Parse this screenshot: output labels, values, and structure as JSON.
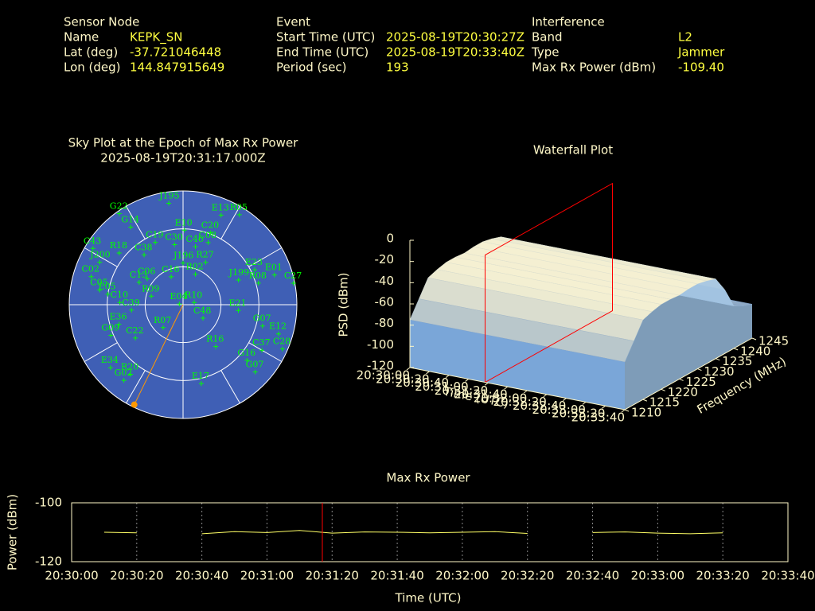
{
  "header": {
    "sections": [
      {
        "title": "Sensor Node",
        "rows": [
          [
            "Name",
            "KEPK_SN"
          ],
          [
            "Lat (deg)",
            "-37.721046448"
          ],
          [
            "Lon (deg)",
            "144.847915649"
          ]
        ]
      },
      {
        "title": "Event",
        "rows": [
          [
            "Start Time (UTC)",
            "2025-08-19T20:30:27Z"
          ],
          [
            "End Time (UTC)",
            "2025-08-19T20:33:40Z"
          ],
          [
            "Period (sec)",
            "193"
          ]
        ]
      },
      {
        "title": "Interference",
        "rows": [
          [
            "Band",
            "L2"
          ],
          [
            "Type",
            "Jammer"
          ],
          [
            "Max Rx Power (dBm)",
            "-109.40"
          ]
        ]
      }
    ]
  },
  "chart_data": [
    {
      "type": "polar",
      "title": "Sky Plot at the Epoch of Max Rx Power",
      "subtitle": "2025-08-19T20:31:17.000Z",
      "color": "#00ff00",
      "background": "#3f5fb5",
      "rticks": [
        0,
        30,
        60
      ],
      "azticks": [
        0,
        30,
        60,
        90,
        120,
        150,
        180,
        210,
        240,
        270,
        300,
        330
      ],
      "satellites": [
        {
          "name": "J195",
          "az": 352,
          "el": 9
        },
        {
          "name": "G22",
          "az": 325,
          "el": 2
        },
        {
          "name": "G14",
          "az": 326,
          "el": 16
        },
        {
          "name": "E13",
          "az": 23,
          "el": 13
        },
        {
          "name": "R05",
          "az": 32,
          "el": 6
        },
        {
          "name": "E10",
          "az": 1,
          "el": 31
        },
        {
          "name": "C20",
          "az": 21,
          "el": 29
        },
        {
          "name": "C08",
          "az": 22,
          "el": 37
        },
        {
          "name": "C43",
          "az": 302,
          "el": 6
        },
        {
          "name": "R18",
          "az": 309,
          "el": 25
        },
        {
          "name": "C19",
          "az": 336,
          "el": 36
        },
        {
          "name": "C30",
          "az": 352,
          "el": 42
        },
        {
          "name": "C46",
          "az": 12,
          "el": 43
        },
        {
          "name": "C38",
          "az": 322,
          "el": 40
        },
        {
          "name": "J196",
          "az": 0,
          "el": 57
        },
        {
          "name": "R27",
          "az": 28,
          "el": 52
        },
        {
          "name": "E23",
          "az": 64,
          "el": 27
        },
        {
          "name": "E01",
          "az": 72,
          "el": 14
        },
        {
          "name": "J200",
          "az": 297,
          "el": 16
        },
        {
          "name": "C02",
          "az": 287,
          "el": 14
        },
        {
          "name": "C27",
          "az": 79,
          "el": 1
        },
        {
          "name": "C06",
          "az": 306,
          "el": 55
        },
        {
          "name": "C16",
          "az": 337,
          "el": 66
        },
        {
          "name": "R02",
          "az": 22,
          "el": 64
        },
        {
          "name": "J199",
          "az": 66,
          "el": 42
        },
        {
          "name": "R08",
          "az": 74,
          "el": 28
        },
        {
          "name": "C05",
          "az": 280,
          "el": 23
        },
        {
          "name": "E05",
          "az": 278,
          "el": 30
        },
        {
          "name": "C13",
          "az": 297,
          "el": 51
        },
        {
          "name": "C10",
          "az": 272,
          "el": 40
        },
        {
          "name": "C39",
          "az": 264,
          "el": 49
        },
        {
          "name": "R09",
          "az": 285,
          "el": 64
        },
        {
          "name": "E04",
          "az": 281,
          "el": 87
        },
        {
          "name": "R10",
          "az": 79,
          "el": 81
        },
        {
          "name": "E21",
          "az": 96,
          "el": 46
        },
        {
          "name": "C48",
          "az": 124,
          "el": 71
        },
        {
          "name": "E36",
          "az": 253,
          "el": 37
        },
        {
          "name": "R07",
          "az": 221,
          "el": 66
        },
        {
          "name": "G07",
          "az": 105,
          "el": 25
        },
        {
          "name": "E12",
          "az": 107,
          "el": 11
        },
        {
          "name": "G09",
          "az": 247,
          "el": 28
        },
        {
          "name": "C22",
          "az": 235,
          "el": 44
        },
        {
          "name": "R16",
          "az": 142,
          "el": 48
        },
        {
          "name": "C28",
          "az": 114,
          "el": 4
        },
        {
          "name": "C37",
          "az": 120,
          "el": 18
        },
        {
          "name": "G16",
          "az": 131,
          "el": 23
        },
        {
          "name": "G07",
          "az": 133,
          "el": 12
        },
        {
          "name": "E34",
          "az": 229,
          "el": 14
        },
        {
          "name": "R20",
          "az": 217,
          "el": 21
        },
        {
          "name": "G02",
          "az": 218,
          "el": 14
        },
        {
          "name": "E17",
          "az": 167,
          "el": 26
        }
      ],
      "max_power_direction": {
        "az": 206,
        "el": 2,
        "color": "#ff9900"
      }
    },
    {
      "type": "surface3d",
      "title": "Waterfall Plot",
      "xlabel": "Time (UTC)",
      "ylabel": "Frequency (MHz)",
      "zlabel": "PSD (dBm)",
      "xlim": [
        73800,
        74020
      ],
      "xticks": [
        {
          "value": 73800,
          "label": "20:30:00"
        },
        {
          "value": 73820,
          "label": "20:30:20"
        },
        {
          "value": 73840,
          "label": "20:30:40"
        },
        {
          "value": 73860,
          "label": "20:31:00"
        },
        {
          "value": 73880,
          "label": "20:31:20"
        },
        {
          "value": 73900,
          "label": "20:31:40"
        },
        {
          "value": 73920,
          "label": "20:32:00"
        },
        {
          "value": 73940,
          "label": "20:32:20"
        },
        {
          "value": 73960,
          "label": "20:32:40"
        },
        {
          "value": 73980,
          "label": "20:33:00"
        },
        {
          "value": 74000,
          "label": "20:33:20"
        },
        {
          "value": 74020,
          "label": "20:33:40"
        }
      ],
      "ylim": [
        1210,
        1245
      ],
      "yticks": [
        1210,
        1215,
        1220,
        1225,
        1230,
        1235,
        1240,
        1245
      ],
      "zlim": [
        -120,
        0
      ],
      "zticks": [
        -120,
        -100,
        -80,
        -60,
        -40,
        -20,
        0
      ],
      "frequency": [
        1210,
        1212.5,
        1215,
        1217.5,
        1220,
        1222.5,
        1225,
        1227.5,
        1230,
        1232.5,
        1235,
        1237.5,
        1240,
        1242.5,
        1245
      ],
      "psd": [
        -75,
        -60,
        -45,
        -42,
        -40,
        -40,
        -41,
        -40,
        -40,
        -42,
        -45,
        -60,
        -80,
        -85,
        -88
      ],
      "epoch": 73877,
      "epoch_color": "#ff0000"
    },
    {
      "type": "line",
      "title": "Max Rx Power",
      "xlabel": "Time (UTC)",
      "ylabel": "Power (dBm)",
      "xlim": [
        73800,
        74020
      ],
      "xticks": [
        {
          "value": 73800,
          "label": "20:30:00"
        },
        {
          "value": 73820,
          "label": "20:30:20"
        },
        {
          "value": 73840,
          "label": "20:30:40"
        },
        {
          "value": 73860,
          "label": "20:31:00"
        },
        {
          "value": 73880,
          "label": "20:31:20"
        },
        {
          "value": 73900,
          "label": "20:31:40"
        },
        {
          "value": 73920,
          "label": "20:32:00"
        },
        {
          "value": 73940,
          "label": "20:32:20"
        },
        {
          "value": 73960,
          "label": "20:32:40"
        },
        {
          "value": 73980,
          "label": "20:33:00"
        },
        {
          "value": 74000,
          "label": "20:33:20"
        },
        {
          "value": 74020,
          "label": "20:33:40"
        }
      ],
      "ylim": [
        -120,
        -100
      ],
      "yticks": [
        -120,
        -100
      ],
      "grid": true,
      "x": [
        73810,
        73820,
        73830,
        73840,
        73850,
        73860,
        73870,
        73880,
        73890,
        73900,
        73910,
        73920,
        73930,
        73940,
        73950,
        73960,
        73970,
        73980,
        73990,
        74000
      ],
      "values": [
        -110,
        -110.2,
        null,
        -110.5,
        -109.8,
        -110.1,
        -109.4,
        -110.3,
        -109.9,
        -110,
        -110.2,
        -110,
        -109.8,
        -110.4,
        null,
        -110.1,
        -109.9,
        -110.3,
        -110.5,
        -110.2
      ],
      "color": "#ffff66",
      "epoch": 73877,
      "epoch_color": "#ff0000"
    }
  ]
}
